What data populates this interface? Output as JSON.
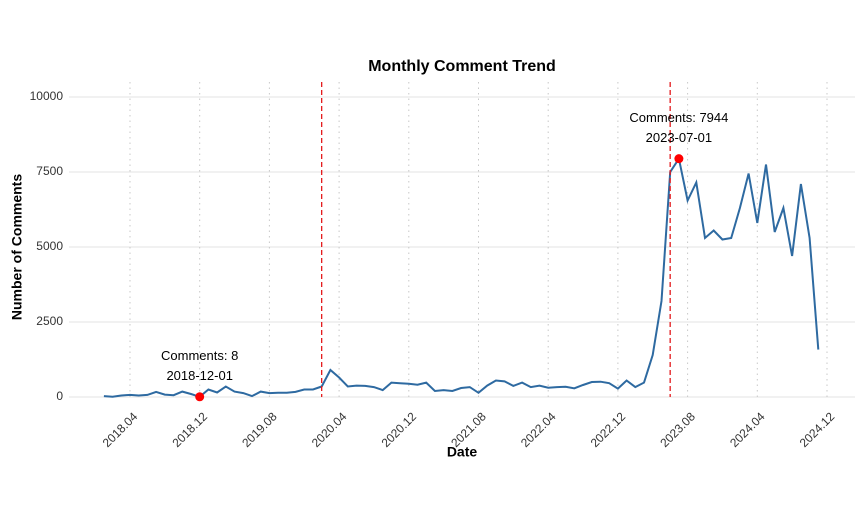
{
  "chart_data": {
    "type": "line",
    "title": "Monthly Comment Trend",
    "x_label": "Date",
    "y_label": "Number of Comments",
    "x": [
      "2018-01",
      "2018-02",
      "2018-03",
      "2018-04",
      "2018-05",
      "2018-06",
      "2018-07",
      "2018-08",
      "2018-09",
      "2018-10",
      "2018-11",
      "2018-12",
      "2019-01",
      "2019-02",
      "2019-03",
      "2019-04",
      "2019-05",
      "2019-06",
      "2019-07",
      "2019-08",
      "2019-09",
      "2019-10",
      "2019-11",
      "2019-12",
      "2020-01",
      "2020-02",
      "2020-03",
      "2020-04",
      "2020-05",
      "2020-06",
      "2020-07",
      "2020-08",
      "2020-09",
      "2020-10",
      "2020-11",
      "2020-12",
      "2021-01",
      "2021-02",
      "2021-03",
      "2021-04",
      "2021-05",
      "2021-06",
      "2021-07",
      "2021-08",
      "2021-09",
      "2021-10",
      "2021-11",
      "2021-12",
      "2022-01",
      "2022-02",
      "2022-03",
      "2022-04",
      "2022-05",
      "2022-06",
      "2022-07",
      "2022-08",
      "2022-09",
      "2022-10",
      "2022-11",
      "2022-12",
      "2023-01",
      "2023-02",
      "2023-03",
      "2023-04",
      "2023-05",
      "2023-06",
      "2023-07",
      "2023-08",
      "2023-09",
      "2023-10",
      "2023-11",
      "2023-12",
      "2024-01",
      "2024-02",
      "2024-03",
      "2024-04",
      "2024-05",
      "2024-06",
      "2024-07",
      "2024-08",
      "2024-09",
      "2024-10",
      "2024-11"
    ],
    "series": [
      {
        "name": "Comments",
        "color": "#2e6aa1",
        "values": [
          30,
          10,
          50,
          70,
          50,
          70,
          170,
          80,
          60,
          180,
          100,
          8,
          250,
          150,
          350,
          180,
          130,
          30,
          180,
          130,
          140,
          140,
          170,
          250,
          250,
          350,
          900,
          650,
          350,
          380,
          370,
          330,
          230,
          480,
          460,
          440,
          410,
          480,
          200,
          230,
          200,
          300,
          330,
          140,
          380,
          550,
          520,
          370,
          480,
          330,
          380,
          310,
          330,
          340,
          290,
          400,
          500,
          510,
          460,
          280,
          550,
          330,
          480,
          1400,
          3200,
          7500,
          7944,
          6550,
          7150,
          5300,
          5550,
          5250,
          5300,
          6300,
          7450,
          5800,
          7750,
          5500,
          6300,
          4700,
          7100,
          5300,
          1580
        ]
      }
    ],
    "xlim": [
      "2017-09",
      "2025-02"
    ],
    "xticks": [
      {
        "value": "2018-04",
        "label": "2018.04"
      },
      {
        "value": "2018-12",
        "label": "2018.12"
      },
      {
        "value": "2019-08",
        "label": "2019.08"
      },
      {
        "value": "2020-04",
        "label": "2020.04"
      },
      {
        "value": "2020-12",
        "label": "2020.12"
      },
      {
        "value": "2021-08",
        "label": "2021.08"
      },
      {
        "value": "2022-04",
        "label": "2022.04"
      },
      {
        "value": "2022-12",
        "label": "2022.12"
      },
      {
        "value": "2023-08",
        "label": "2023.08"
      },
      {
        "value": "2024-04",
        "label": "2024.04"
      },
      {
        "value": "2024-12",
        "label": "2024.12"
      }
    ],
    "ylim": [
      0,
      10500
    ],
    "yticks": [
      0,
      2500,
      5000,
      7500,
      10000
    ],
    "grid": true,
    "vlines": {
      "color": "#e41a1c",
      "x": [
        "2020-02",
        "2023-06"
      ]
    },
    "annotations": [
      {
        "index": 11,
        "color": "#ff0000",
        "lines": [
          "Comments: 8",
          "2018-12-01"
        ]
      },
      {
        "index": 66,
        "color": "#ff0000",
        "lines": [
          "Comments: 7944",
          "2023-07-01"
        ]
      }
    ]
  }
}
